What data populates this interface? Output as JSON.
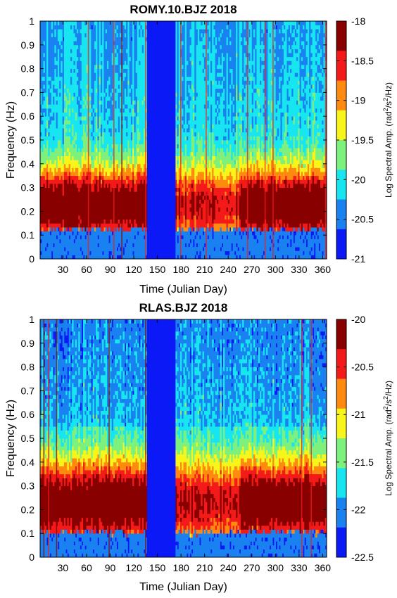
{
  "chart_data": [
    {
      "type": "heatmap",
      "title": "ROMY.10.BJZ   2018",
      "xlabel": "Time (Julian Day)",
      "ylabel": "Frequency (Hz)",
      "xlim": [
        1,
        365
      ],
      "ylim": [
        0,
        1
      ],
      "x_ticks": [
        "30",
        "60",
        "90",
        "120",
        "150",
        "180",
        "210",
        "240",
        "270",
        "300",
        "330",
        "360"
      ],
      "y_ticks": [
        "0",
        "0.1",
        "0.2",
        "0.3",
        "0.4",
        "0.5",
        "0.6",
        "0.7",
        "0.8",
        "0.9",
        "1"
      ],
      "colorbar": {
        "label_prefix": "Log Spectral Amp. (rad",
        "label_sup1": "2",
        "label_mid": "/s",
        "label_sup2": "2",
        "label_suffix": "/Hz)",
        "min": -21,
        "max": -18,
        "levels": 6,
        "ticks": [
          "-18",
          "-18.5",
          "-19",
          "-19.5",
          "-20",
          "-20.5",
          "-21"
        ]
      },
      "data_gap_days": [
        137,
        173
      ],
      "energy_band_hz": [
        0.12,
        0.42
      ],
      "colormap": [
        "#0a19f5",
        "#1a82f0",
        "#17e6f0",
        "#7ef07c",
        "#f8f51a",
        "#ff8a10",
        "#f51a1a",
        "#880000"
      ]
    },
    {
      "type": "heatmap",
      "title": "RLAS.BJZ   2018",
      "xlabel": "Time (Julian Day)",
      "ylabel": "Frequency (Hz)",
      "xlim": [
        1,
        365
      ],
      "ylim": [
        0,
        1
      ],
      "x_ticks": [
        "30",
        "60",
        "90",
        "120",
        "150",
        "180",
        "210",
        "240",
        "270",
        "300",
        "330",
        "360"
      ],
      "y_ticks": [
        "0",
        "0.1",
        "0.2",
        "0.3",
        "0.4",
        "0.5",
        "0.6",
        "0.7",
        "0.8",
        "0.9",
        "1"
      ],
      "colorbar": {
        "label_prefix": "Log Spectral Amp. (rad",
        "label_sup1": "2",
        "label_mid": "/s",
        "label_sup2": "2",
        "label_suffix": "/Hz)",
        "min": -22.5,
        "max": -20,
        "levels": 5,
        "ticks": [
          "-20",
          "-20.5",
          "-21",
          "-21.5",
          "-22",
          "-22.5"
        ]
      },
      "data_gap_days": [
        137,
        173
      ],
      "energy_band_hz": [
        0.1,
        0.45
      ],
      "colormap": [
        "#0a19f5",
        "#1a82f0",
        "#17e6f0",
        "#7ef07c",
        "#f8f51a",
        "#ff8a10",
        "#f51a1a",
        "#880000"
      ]
    }
  ]
}
